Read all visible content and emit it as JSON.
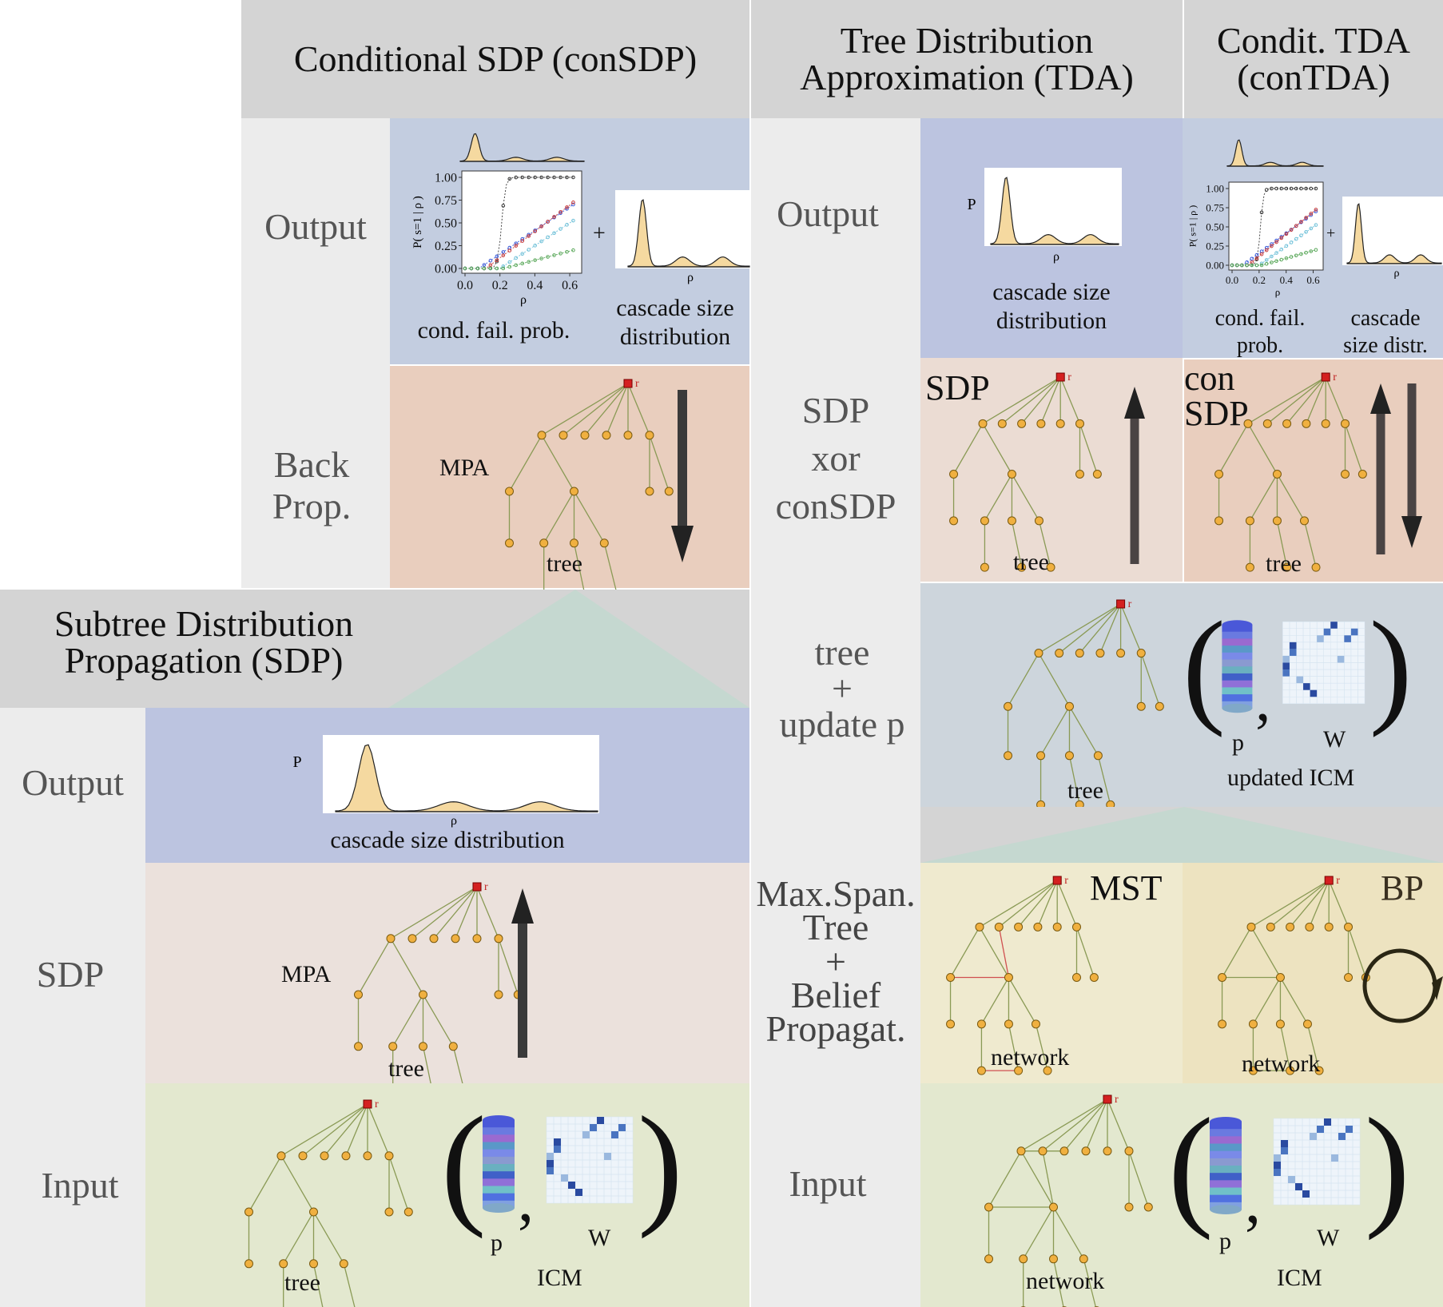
{
  "headers": {
    "consdp": "Conditional SDP (conSDP)",
    "tda": [
      "Tree Distribution",
      "Approximation (TDA)"
    ],
    "contda": [
      "Condit. TDA",
      "(conTDA)"
    ],
    "sdp": [
      "Subtree Distribution",
      "Propagation (SDP)"
    ]
  },
  "row_labels": {
    "consdp_output": "Output",
    "consdp_backprop": [
      "Back",
      "Prop."
    ],
    "tda_output": "Output",
    "tda_sdp_xor": [
      "SDP",
      "xor",
      "conSDP"
    ],
    "tda_tree_update": [
      "tree",
      "+",
      "update p"
    ],
    "tda_mst_bp": [
      "Max.Span.",
      "Tree",
      "+",
      "Belief",
      "Propagat."
    ],
    "tda_input": "Input",
    "sdp_output": "Output",
    "sdp_sdp": "SDP",
    "sdp_input": "Input"
  },
  "captions": {
    "cond_fail_prob": "cond. fail. prob.",
    "cond_fail_prob_split": [
      "cond. fail.",
      "prob."
    ],
    "cascade_size_distribution": [
      "cascade size",
      "distribution"
    ],
    "cascade_size_distr": [
      "cascade",
      "size distr."
    ],
    "cascade_size_distribution_line": "cascade size distribution",
    "tree": "tree",
    "network": "network",
    "mpa": "MPA",
    "icm": "ICM",
    "updated_icm": "updated ICM",
    "p": "p",
    "w": "W",
    "plus": "+",
    "root": "r",
    "axis_P": "P",
    "axis_rho": "ρ"
  },
  "tags": {
    "sdp": "SDP",
    "con_sdp": [
      "con",
      "SDP"
    ],
    "mst": "MST",
    "bp": "BP"
  },
  "cond_plot": {
    "ylabel": "P( s=1 | ρ )",
    "xlabel": "ρ",
    "yticks": [
      "0.00",
      "0.25",
      "0.50",
      "0.75",
      "1.00"
    ],
    "xticks": [
      "0.0",
      "0.2",
      "0.4",
      "0.6"
    ]
  },
  "colors": {
    "header": "#d4d4d4",
    "side": "#ececec",
    "output_bg": "#c3cde0",
    "backprop_bg": "#e9cebe",
    "input_bg": "#e3e8cf",
    "node": "#f0b040",
    "root": "#d42020",
    "edge": "#8a9a55",
    "density_fill": "#f5d9a0"
  }
}
